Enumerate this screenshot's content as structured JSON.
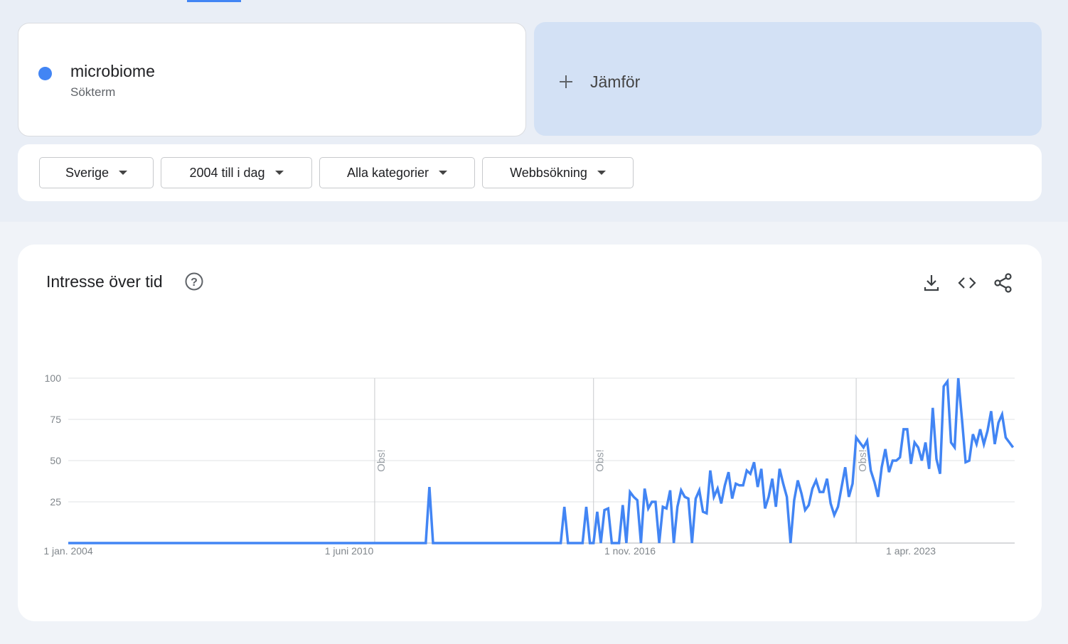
{
  "search_card": {
    "term_type": "Sökterm",
    "compare": "Jämför"
  },
  "filters": [
    "Sverige",
    "2004 till i dag",
    "Alla kategorier",
    "Webbsökning"
  ],
  "chart_data": {
    "type": "line",
    "title": "Intresse över tid",
    "x": [
      "2004-01",
      "2012-03",
      "2012-04",
      "2012-05",
      "2015-03",
      "2015-04",
      "2015-05",
      "2015-06",
      "2015-07",
      "2015-08",
      "2015-09",
      "2015-10",
      "2015-11",
      "2015-12",
      "2016-01",
      "2016-02",
      "2016-03",
      "2016-04",
      "2016-05",
      "2016-06",
      "2016-07",
      "2016-08",
      "2016-09",
      "2016-10",
      "2016-11",
      "2016-12",
      "2017-01",
      "2017-02",
      "2017-03",
      "2017-04",
      "2017-05",
      "2017-06",
      "2017-07",
      "2017-08",
      "2017-09",
      "2017-10",
      "2017-11",
      "2017-12",
      "2018-01",
      "2018-02",
      "2018-03",
      "2018-04",
      "2018-05",
      "2018-06",
      "2018-07",
      "2018-08",
      "2018-09",
      "2018-10",
      "2018-11",
      "2018-12",
      "2019-01",
      "2019-02",
      "2019-03",
      "2019-04",
      "2019-05",
      "2019-06",
      "2019-07",
      "2019-08",
      "2019-09",
      "2019-10",
      "2019-11",
      "2019-12",
      "2020-01",
      "2020-02",
      "2020-03",
      "2020-04",
      "2020-05",
      "2020-06",
      "2020-07",
      "2020-08",
      "2020-09",
      "2020-10",
      "2020-11",
      "2020-12",
      "2021-01",
      "2021-02",
      "2021-03",
      "2021-04",
      "2021-05",
      "2021-06",
      "2021-07",
      "2021-08",
      "2021-09",
      "2021-10",
      "2021-11",
      "2021-12",
      "2022-01",
      "2022-02",
      "2022-03",
      "2022-04",
      "2022-05",
      "2022-06",
      "2022-07",
      "2022-08",
      "2022-09",
      "2022-10",
      "2022-11",
      "2022-12",
      "2023-01",
      "2023-02",
      "2023-03",
      "2023-04",
      "2023-05",
      "2023-06",
      "2023-07",
      "2023-08",
      "2023-09",
      "2023-10",
      "2023-11",
      "2023-12",
      "2024-01",
      "2024-02",
      "2024-03",
      "2024-04",
      "2024-05",
      "2024-06",
      "2024-07",
      "2024-08",
      "2024-09",
      "2024-10",
      "2024-11",
      "2024-12",
      "2025-01",
      "2025-02",
      "2025-03",
      "2025-04",
      "2025-05",
      "2025-06",
      "2025-07",
      "2025-08"
    ],
    "series": [
      {
        "name": "microbiome",
        "color": "#4285f4",
        "values": [
          0,
          0,
          34,
          0,
          0,
          0,
          22,
          0,
          0,
          0,
          0,
          0,
          22,
          0,
          0,
          19,
          0,
          20,
          21,
          0,
          0,
          0,
          23,
          0,
          31,
          28,
          26,
          0,
          33,
          21,
          25,
          25,
          0,
          22,
          21,
          32,
          0,
          22,
          32,
          28,
          27,
          0,
          27,
          32,
          19,
          18,
          44,
          28,
          33,
          24,
          35,
          43,
          27,
          36,
          35,
          35,
          44,
          42,
          49,
          34,
          45,
          21,
          28,
          39,
          22,
          45,
          36,
          28,
          0,
          26,
          38,
          30,
          20,
          23,
          33,
          38,
          31,
          31,
          39,
          24,
          17,
          22,
          34,
          46,
          28,
          36,
          64,
          61,
          58,
          62,
          44,
          37,
          28,
          46,
          57,
          43,
          50,
          50,
          52,
          69,
          69,
          48,
          61,
          58,
          50,
          61,
          45,
          82,
          51,
          42,
          95,
          98,
          61,
          58,
          100,
          75,
          49,
          50,
          66,
          60,
          69,
          60,
          68,
          80,
          60,
          73,
          78,
          64,
          61,
          58
        ]
      }
    ],
    "xlim": [
      "2004-01",
      "2025-08"
    ],
    "xticks": [
      {
        "value": "2004-01",
        "label": "1 jan. 2004"
      },
      {
        "value": "2010-06",
        "label": "1 juni 2010"
      },
      {
        "value": "2016-11",
        "label": "1 nov. 2016"
      },
      {
        "value": "2023-04",
        "label": "1 apr. 2023"
      }
    ],
    "ylim": [
      0,
      100
    ],
    "yticks": [
      25,
      50,
      75,
      100
    ],
    "grid": true,
    "annotations": [
      {
        "x": "2011-01",
        "text": "Obs!"
      },
      {
        "x": "2016-01",
        "text": "Obs!"
      },
      {
        "x": "2022-01",
        "text": "Obs!"
      }
    ]
  }
}
